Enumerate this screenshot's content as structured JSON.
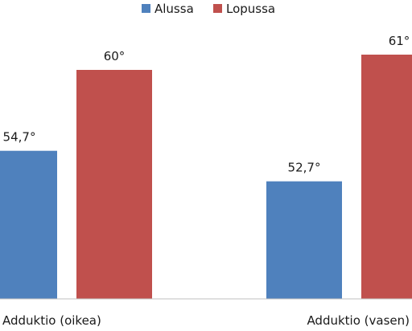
{
  "chart_data": {
    "type": "bar",
    "categories": [
      "Adduktio (oikea)",
      "Adduktio (vasen)"
    ],
    "series": [
      {
        "name": "Alussa",
        "values": [
          54.7,
          52.7
        ],
        "labels": [
          "54,7°",
          "52,7°"
        ],
        "color": "#4f81bd"
      },
      {
        "name": "Lopussa",
        "values": [
          60,
          61
        ],
        "labels": [
          "60°",
          "61°"
        ],
        "color": "#c0504d"
      }
    ],
    "legend": "top-center",
    "grid": false,
    "ylim": [
      45,
      63
    ]
  }
}
